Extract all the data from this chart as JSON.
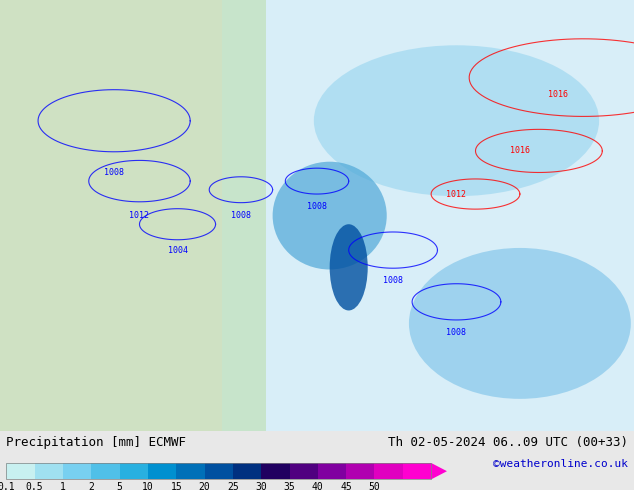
{
  "title_left": "Precipitation [mm] ECMWF",
  "title_right": "Th 02-05-2024 06..09 UTC (00+33)",
  "credit": "©weatheronline.co.uk",
  "colorbar_labels": [
    "0.1",
    "0.5",
    "1",
    "2",
    "5",
    "10",
    "15",
    "20",
    "25",
    "30",
    "35",
    "40",
    "45",
    "50"
  ],
  "colorbar_colors": [
    "#c8f0f0",
    "#a0e0f0",
    "#78d0f0",
    "#50c0e8",
    "#28b0e0",
    "#0090d0",
    "#0070b8",
    "#0050a0",
    "#003080",
    "#200060",
    "#500080",
    "#8000a0",
    "#b000b0",
    "#e000c0",
    "#ff00d0"
  ],
  "bg_color": "#e8e8e8",
  "map_bg": "#c8e8c8",
  "figsize": [
    6.34,
    4.9
  ],
  "dpi": 100
}
